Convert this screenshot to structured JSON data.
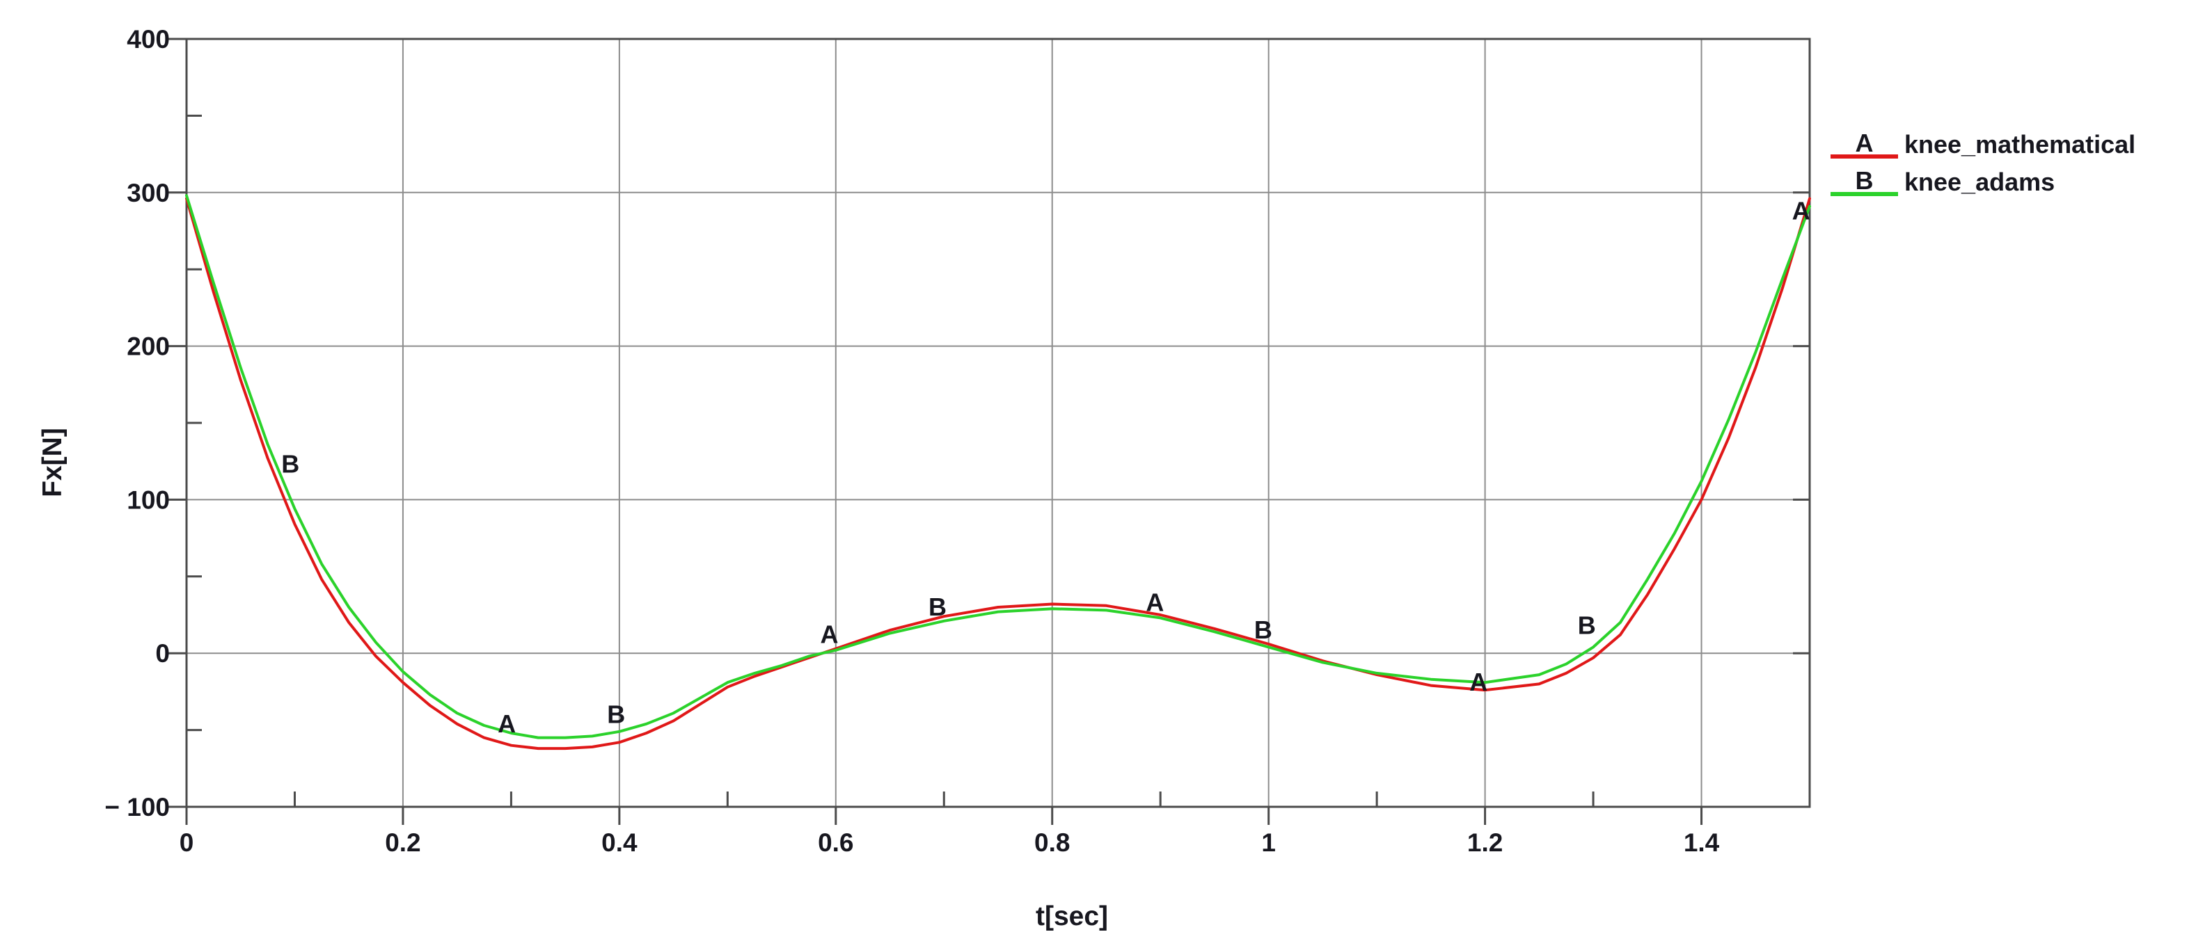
{
  "axes": {
    "x_label": "t[sec]",
    "y_label": "Fx[N]"
  },
  "legend": [
    {
      "key": "A",
      "label": "knee_mathematical",
      "color": "#e01818"
    },
    {
      "key": "B",
      "label": "knee_adams",
      "color": "#2bd22b"
    }
  ],
  "colors": {
    "grid": "#8c8c8c",
    "axis": "#4b4b4b",
    "text": "#17171f",
    "background": "#ffffff"
  },
  "chart_data": {
    "type": "line",
    "title": "",
    "xlabel": "t[sec]",
    "ylabel": "Fx[N]",
    "xlim": [
      0,
      1.5
    ],
    "ylim": [
      -100,
      400
    ],
    "grid": true,
    "legend_position": "top-right-outside",
    "x_ticks": [
      {
        "v": 0,
        "label": "0"
      },
      {
        "v": 0.2,
        "label": "0.2"
      },
      {
        "v": 0.4,
        "label": "0.4"
      },
      {
        "v": 0.6,
        "label": "0.6"
      },
      {
        "v": 0.8,
        "label": "0.8"
      },
      {
        "v": 1,
        "label": "1"
      },
      {
        "v": 1.2,
        "label": "1.2"
      },
      {
        "v": 1.4,
        "label": "1.4"
      }
    ],
    "y_ticks": [
      {
        "v": 400,
        "label": "400"
      },
      {
        "v": 300,
        "label": "300"
      },
      {
        "v": 200,
        "label": "200"
      },
      {
        "v": 100,
        "label": "100"
      },
      {
        "v": 0,
        "label": "0"
      },
      {
        "v": -100,
        "label": "− 100"
      }
    ],
    "x_minor_ticks": [
      0.1,
      0.3,
      0.5,
      0.7,
      0.9,
      1.1,
      1.3
    ],
    "y_minor_ticks": [
      350,
      250,
      150,
      50,
      -50
    ],
    "x": [
      0,
      0.025,
      0.05,
      0.075,
      0.1,
      0.125,
      0.15,
      0.175,
      0.2,
      0.225,
      0.25,
      0.275,
      0.3,
      0.325,
      0.35,
      0.375,
      0.4,
      0.425,
      0.45,
      0.475,
      0.5,
      0.525,
      0.55,
      0.575,
      0.6,
      0.65,
      0.7,
      0.75,
      0.8,
      0.85,
      0.9,
      0.95,
      1.0,
      1.05,
      1.1,
      1.15,
      1.2,
      1.25,
      1.275,
      1.3,
      1.325,
      1.35,
      1.375,
      1.4,
      1.425,
      1.45,
      1.475,
      1.5
    ],
    "series": [
      {
        "name": "knee_mathematical",
        "letter": "A",
        "color": "#e01818",
        "values": [
          296,
          235,
          178,
          127,
          84,
          48,
          20,
          -2,
          -19,
          -34,
          -46,
          -55,
          -60,
          -62,
          -62,
          -61,
          -58,
          -52,
          -44,
          -33,
          -22,
          -15,
          -9,
          -3,
          3,
          15,
          24,
          30,
          32,
          31,
          25,
          16,
          6,
          -5,
          -14,
          -21,
          -24,
          -20,
          -13,
          -3,
          12,
          38,
          68,
          100,
          140,
          186,
          238,
          296
        ]
      },
      {
        "name": "knee_adams",
        "letter": "B",
        "color": "#2bd22b",
        "values": [
          298,
          241,
          186,
          136,
          94,
          58,
          30,
          7,
          -12,
          -27,
          -39,
          -47,
          -52,
          -55,
          -55,
          -54,
          -51,
          -46,
          -39,
          -29,
          -19,
          -13,
          -8,
          -2,
          2,
          13,
          21,
          27,
          29,
          28,
          23,
          14,
          4,
          -6,
          -13,
          -17,
          -19,
          -14,
          -7,
          4,
          20,
          48,
          78,
          112,
          152,
          196,
          244,
          291
        ]
      }
    ],
    "point_labels": [
      {
        "letter": "B",
        "t": 0.096,
        "v": 123
      },
      {
        "letter": "A",
        "t": 0.296,
        "v": -46
      },
      {
        "letter": "B",
        "t": 0.397,
        "v": -40
      },
      {
        "letter": "A",
        "t": 0.594,
        "v": 12
      },
      {
        "letter": "B",
        "t": 0.694,
        "v": 30
      },
      {
        "letter": "A",
        "t": 0.895,
        "v": 33
      },
      {
        "letter": "B",
        "t": 0.995,
        "v": 15
      },
      {
        "letter": "A",
        "t": 1.194,
        "v": -19
      },
      {
        "letter": "B",
        "t": 1.294,
        "v": 18
      },
      {
        "letter": "A",
        "t": 1.492,
        "v": 288
      }
    ]
  }
}
